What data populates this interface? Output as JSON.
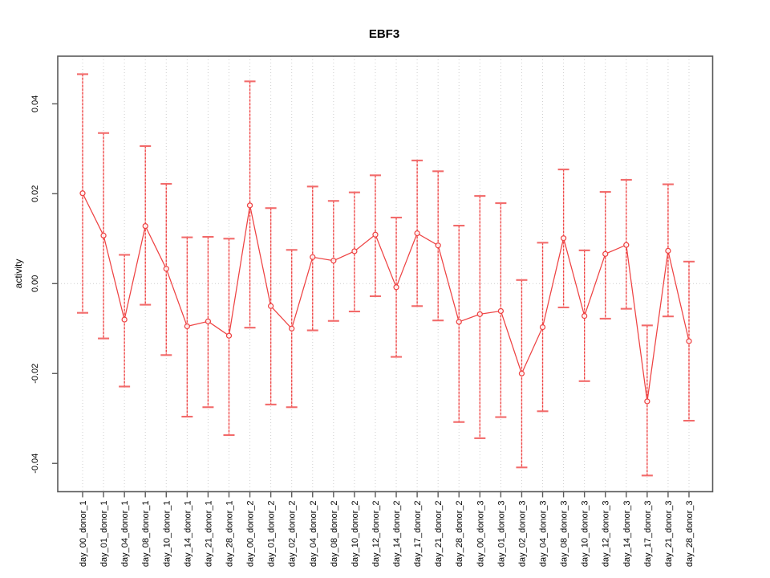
{
  "chart_data": {
    "type": "line",
    "subtype": "points-with-error-bars",
    "title": "EBF3",
    "xlabel": "",
    "ylabel": "activity",
    "legend": "none",
    "grid": "vertical-dotted-per-category-plus-dotted-zero-line",
    "ylim": [
      -0.0463,
      0.0506
    ],
    "yticks": [
      -0.04,
      -0.02,
      0.0,
      0.02,
      0.04
    ],
    "ytick_labels": [
      "-0.04",
      "-0.02",
      "0.00",
      "0.02",
      "0.04"
    ],
    "categories": [
      "day_00_donor_1",
      "day_01_donor_1",
      "day_04_donor_1",
      "day_08_donor_1",
      "day_10_donor_1",
      "day_14_donor_1",
      "day_21_donor_1",
      "day_28_donor_1",
      "day_00_donor_2",
      "day_01_donor_2",
      "day_02_donor_2",
      "day_04_donor_2",
      "day_08_donor_2",
      "day_10_donor_2",
      "day_12_donor_2",
      "day_14_donor_2",
      "day_17_donor_2",
      "day_21_donor_2",
      "day_28_donor_2",
      "day_00_donor_3",
      "day_01_donor_3",
      "day_02_donor_3",
      "day_04_donor_3",
      "day_08_donor_3",
      "day_10_donor_3",
      "day_12_donor_3",
      "day_14_donor_3",
      "day_17_donor_3",
      "day_21_donor_3",
      "day_28_donor_3"
    ],
    "series": [
      {
        "name": "activity",
        "values": [
          0.0201,
          0.0107,
          -0.008,
          0.0128,
          0.0033,
          -0.0095,
          -0.0084,
          -0.0116,
          0.0174,
          -0.005,
          -0.01,
          0.0059,
          0.0051,
          0.0072,
          0.0109,
          -0.0008,
          0.0112,
          0.0085,
          -0.0085,
          -0.0068,
          -0.0061,
          -0.02,
          -0.0097,
          0.0101,
          -0.0072,
          0.0066,
          0.0086,
          -0.0262,
          0.0073,
          -0.0128
        ],
        "lower": [
          -0.0065,
          -0.0122,
          -0.0229,
          -0.0047,
          -0.0159,
          -0.0296,
          -0.0275,
          -0.0337,
          -0.0098,
          -0.0269,
          -0.0275,
          -0.0104,
          -0.0083,
          -0.0062,
          -0.0028,
          -0.0163,
          -0.005,
          -0.0082,
          -0.0308,
          -0.0344,
          -0.0297,
          -0.0409,
          -0.0284,
          -0.0053,
          -0.0217,
          -0.0078,
          -0.0056,
          -0.0427,
          -0.0073,
          -0.0305
        ],
        "upper": [
          0.0466,
          0.0335,
          0.0064,
          0.0306,
          0.0222,
          0.0103,
          0.0104,
          0.01,
          0.045,
          0.0168,
          0.0075,
          0.0216,
          0.0184,
          0.0203,
          0.0241,
          0.0147,
          0.0274,
          0.025,
          0.0129,
          0.0195,
          0.0179,
          0.0008,
          0.0091,
          0.0254,
          0.0074,
          0.0204,
          0.0231,
          -0.0093,
          0.0221,
          0.0049
        ]
      }
    ],
    "colors": {
      "series": "#ee4343",
      "error_bar_fill": "#f8b3b3",
      "cap": "#f26b6b",
      "grid": "#cfcfcf",
      "axis": "#5a5a5a",
      "text": "#000000",
      "background": "#ffffff"
    }
  }
}
